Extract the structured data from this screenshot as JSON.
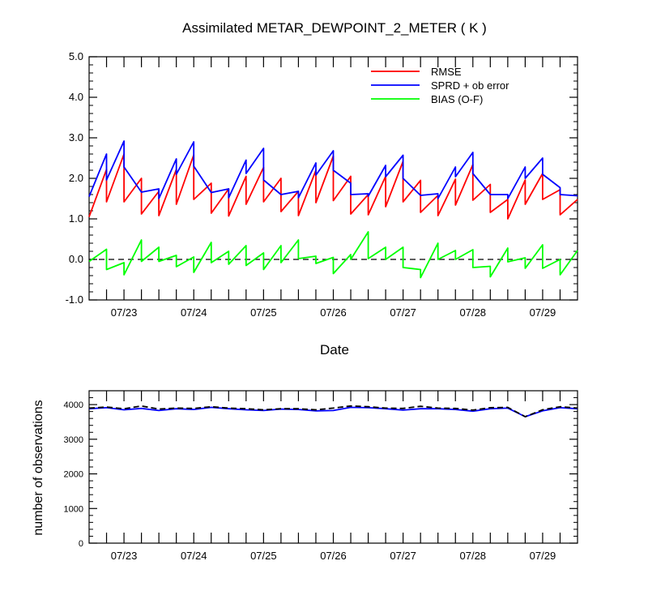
{
  "chart_data": [
    {
      "type": "line",
      "title": "Assimilated METAR_DEWPOINT_2_METER ( K )",
      "xlabel": "Date",
      "ylabel": "",
      "xlim": [
        0,
        84
      ],
      "ylim": [
        -1.0,
        5.0
      ],
      "yticks": [
        "-1.0",
        "0.0",
        "1.0",
        "2.0",
        "3.0",
        "4.0",
        "5.0"
      ],
      "xtick_labels": [
        {
          "x": 6,
          "label": "07/23"
        },
        {
          "x": 18,
          "label": "07/24"
        },
        {
          "x": 30,
          "label": "07/25"
        },
        {
          "x": 42,
          "label": "07/26"
        },
        {
          "x": 54,
          "label": "07/27"
        },
        {
          "x": 66,
          "label": "07/28"
        },
        {
          "x": 78,
          "label": "07/29"
        }
      ],
      "legend": {
        "placement": "top-right"
      },
      "zero_line": true,
      "series": [
        {
          "name": "RMSE",
          "color": "#ff0000",
          "x": [
            0,
            3,
            3,
            6,
            6,
            9,
            9,
            12,
            12,
            15,
            15,
            18,
            18,
            21,
            21,
            24,
            24,
            27,
            27,
            30,
            30,
            33,
            33,
            36,
            36,
            39,
            39,
            42,
            42,
            45,
            45,
            48,
            48,
            51,
            51,
            54,
            54,
            57,
            57,
            60,
            60,
            63,
            63,
            66,
            66,
            69,
            69,
            72,
            72,
            75,
            75,
            78,
            78,
            81,
            81,
            84
          ],
          "y": [
            1.05,
            2.22,
            1.42,
            2.6,
            1.42,
            2.0,
            1.12,
            1.68,
            1.08,
            2.22,
            1.36,
            2.58,
            1.48,
            1.88,
            1.14,
            1.74,
            1.07,
            2.05,
            1.36,
            2.27,
            1.42,
            2.0,
            1.18,
            1.68,
            1.08,
            2.2,
            1.4,
            2.55,
            1.45,
            2.05,
            1.12,
            1.6,
            1.1,
            2.05,
            1.3,
            2.42,
            1.42,
            1.95,
            1.16,
            1.58,
            1.08,
            1.98,
            1.34,
            2.34,
            1.46,
            1.85,
            1.16,
            1.48,
            1.0,
            1.96,
            1.36,
            2.12,
            1.48,
            1.72,
            1.1,
            1.48
          ]
        },
        {
          "name": "SPRD + ob error",
          "color": "#0000ff",
          "x": [
            0,
            3,
            3,
            6,
            6,
            9,
            9,
            12,
            12,
            15,
            15,
            18,
            18,
            21,
            21,
            24,
            24,
            27,
            27,
            30,
            30,
            33,
            33,
            36,
            36,
            39,
            39,
            42,
            42,
            45,
            45,
            48,
            48,
            51,
            51,
            54,
            54,
            57,
            57,
            60,
            60,
            63,
            63,
            66,
            66,
            69,
            69,
            72,
            72,
            75,
            75,
            78,
            78,
            81,
            81,
            84
          ],
          "y": [
            1.55,
            2.6,
            1.96,
            2.92,
            2.28,
            1.66,
            1.66,
            1.74,
            1.5,
            2.48,
            2.1,
            2.9,
            2.3,
            1.65,
            1.65,
            1.74,
            1.52,
            2.45,
            2.12,
            2.74,
            1.96,
            1.6,
            1.6,
            1.68,
            1.52,
            2.38,
            2.08,
            2.68,
            2.2,
            1.88,
            1.6,
            1.62,
            1.56,
            2.32,
            2.04,
            2.57,
            2.0,
            1.58,
            1.58,
            1.62,
            1.5,
            2.28,
            2.04,
            2.64,
            2.12,
            1.6,
            1.6,
            1.6,
            1.5,
            2.28,
            2.0,
            2.5,
            2.1,
            1.77,
            1.6,
            1.57
          ]
        },
        {
          "name": "BIAS (O-F)",
          "color": "#00ff00",
          "x": [
            0,
            3,
            3,
            6,
            6,
            9,
            9,
            12,
            12,
            15,
            15,
            18,
            18,
            21,
            21,
            24,
            24,
            27,
            27,
            30,
            30,
            33,
            33,
            36,
            36,
            39,
            39,
            42,
            42,
            45,
            45,
            48,
            48,
            51,
            51,
            54,
            54,
            57,
            57,
            60,
            60,
            63,
            63,
            66,
            66,
            69,
            69,
            72,
            72,
            75,
            75,
            78,
            78,
            81,
            81,
            84
          ],
          "y": [
            -0.05,
            0.25,
            -0.25,
            -0.08,
            -0.38,
            0.48,
            -0.05,
            0.3,
            -0.05,
            0.1,
            -0.18,
            0.06,
            -0.32,
            0.42,
            -0.08,
            0.2,
            -0.12,
            0.34,
            -0.15,
            0.16,
            -0.25,
            0.34,
            -0.08,
            0.48,
            0.02,
            0.08,
            -0.1,
            0.05,
            -0.35,
            0.12,
            0.0,
            0.68,
            0.02,
            0.3,
            0.0,
            0.3,
            -0.2,
            -0.25,
            -0.45,
            0.4,
            0.0,
            0.22,
            0.0,
            0.24,
            -0.2,
            -0.17,
            -0.43,
            0.28,
            -0.06,
            0.04,
            -0.22,
            0.36,
            -0.22,
            0.0,
            -0.38,
            0.22
          ]
        }
      ]
    },
    {
      "type": "line",
      "title": "",
      "xlabel": "",
      "ylabel": "number of observations",
      "xlim": [
        0,
        84
      ],
      "ylim": [
        0,
        4400
      ],
      "yticks": [
        "0",
        "1000",
        "2000",
        "3000",
        "4000"
      ],
      "xtick_labels": [
        {
          "x": 6,
          "label": "07/23"
        },
        {
          "x": 18,
          "label": "07/24"
        },
        {
          "x": 30,
          "label": "07/25"
        },
        {
          "x": 42,
          "label": "07/26"
        },
        {
          "x": 54,
          "label": "07/27"
        },
        {
          "x": 66,
          "label": "07/28"
        },
        {
          "x": 78,
          "label": "07/29"
        }
      ],
      "series": [
        {
          "color": "#0000ff",
          "style": "solid",
          "x": [
            0,
            3,
            6,
            9,
            12,
            15,
            18,
            21,
            24,
            27,
            30,
            33,
            36,
            39,
            42,
            45,
            48,
            51,
            54,
            57,
            60,
            63,
            66,
            69,
            72,
            75,
            78,
            81,
            84
          ],
          "y": [
            3880,
            3910,
            3850,
            3890,
            3830,
            3880,
            3860,
            3920,
            3880,
            3850,
            3830,
            3870,
            3860,
            3820,
            3830,
            3920,
            3910,
            3880,
            3840,
            3880,
            3880,
            3860,
            3810,
            3880,
            3900,
            3650,
            3820,
            3910,
            3880
          ]
        },
        {
          "color": "#000000",
          "style": "dashed",
          "x": [
            0,
            3,
            6,
            9,
            12,
            15,
            18,
            21,
            24,
            27,
            30,
            33,
            36,
            39,
            42,
            45,
            48,
            51,
            54,
            57,
            60,
            63,
            66,
            69,
            72,
            75,
            78,
            81,
            84
          ],
          "y": [
            3900,
            3930,
            3880,
            3960,
            3870,
            3900,
            3890,
            3940,
            3900,
            3880,
            3850,
            3880,
            3880,
            3850,
            3900,
            3960,
            3940,
            3900,
            3890,
            3950,
            3900,
            3890,
            3840,
            3910,
            3920,
            3650,
            3850,
            3940,
            3900
          ]
        }
      ]
    }
  ]
}
